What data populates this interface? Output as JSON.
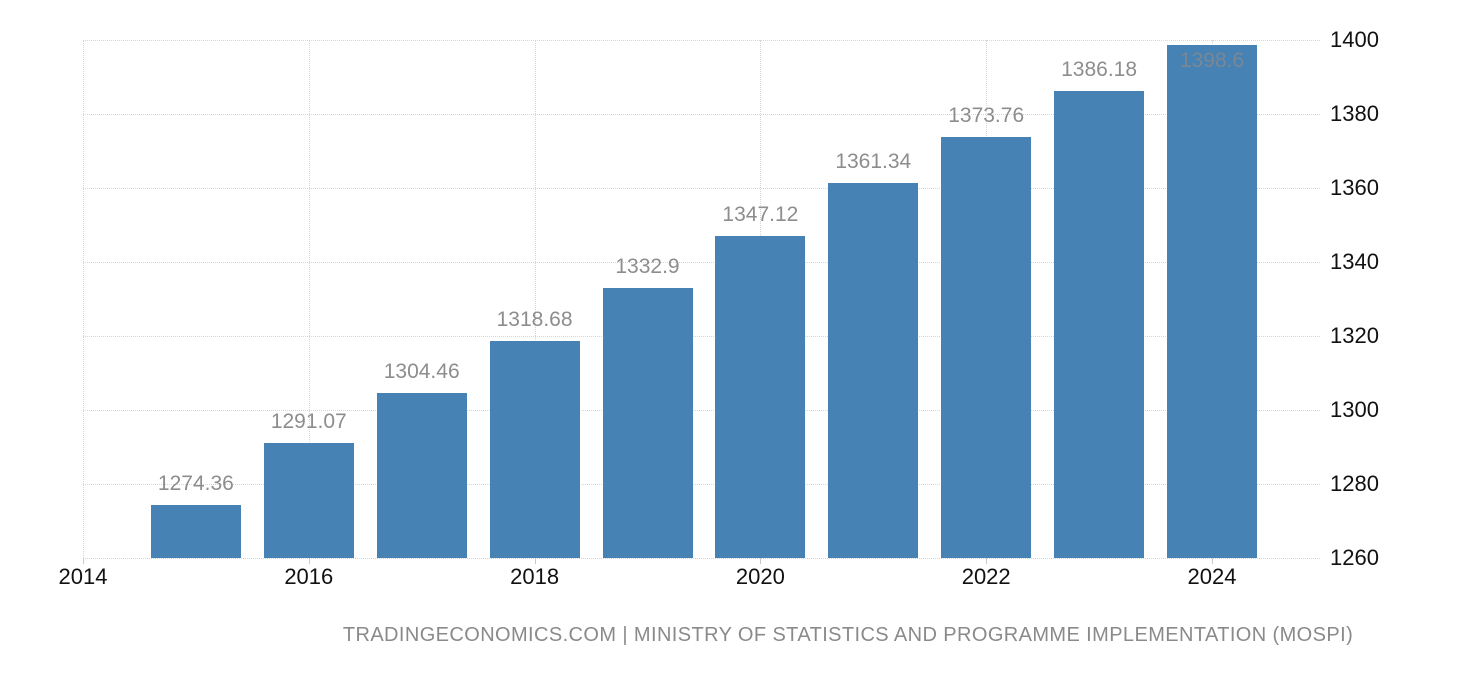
{
  "chart_data": {
    "type": "bar",
    "title": "",
    "xlabel": "",
    "ylabel": "",
    "categories": [
      2015,
      2016,
      2017,
      2018,
      2019,
      2020,
      2021,
      2022,
      2023,
      2024
    ],
    "values": [
      1274.36,
      1291.07,
      1304.46,
      1318.68,
      1332.9,
      1347.12,
      1361.34,
      1373.76,
      1386.18,
      1398.6
    ],
    "value_labels": [
      "1274.36",
      "1291.07",
      "1304.46",
      "1318.68",
      "1332.9",
      "1347.12",
      "1361.34",
      "1373.76",
      "1386.18",
      "1398.6"
    ],
    "x_tick_years": [
      2014,
      2016,
      2018,
      2020,
      2022,
      2024
    ],
    "x_tick_labels": [
      "2014",
      "2016",
      "2018",
      "2020",
      "2022",
      "2024"
    ],
    "y_ticks": [
      1260,
      1280,
      1300,
      1320,
      1340,
      1360,
      1380,
      1400
    ],
    "y_tick_labels": [
      "1260",
      "1280",
      "1300",
      "1320",
      "1340",
      "1360",
      "1380",
      "1400"
    ],
    "ylim": [
      1260,
      1400
    ],
    "xlim": [
      2014,
      2025
    ],
    "grid": "dotted",
    "legend": "none",
    "y_axis_position": "right",
    "colors": {
      "bar": "#4682b4",
      "value_label": "#8d8d8d",
      "value_label_inside": "#7b8793",
      "axis_label": "#111111",
      "gridline": "#d6d6d6",
      "tick": "#c9c9c9"
    }
  },
  "footer": {
    "attribution": "TRADINGECONOMICS.COM | MINISTRY OF STATISTICS AND PROGRAMME IMPLEMENTATION (MOSPI)"
  }
}
